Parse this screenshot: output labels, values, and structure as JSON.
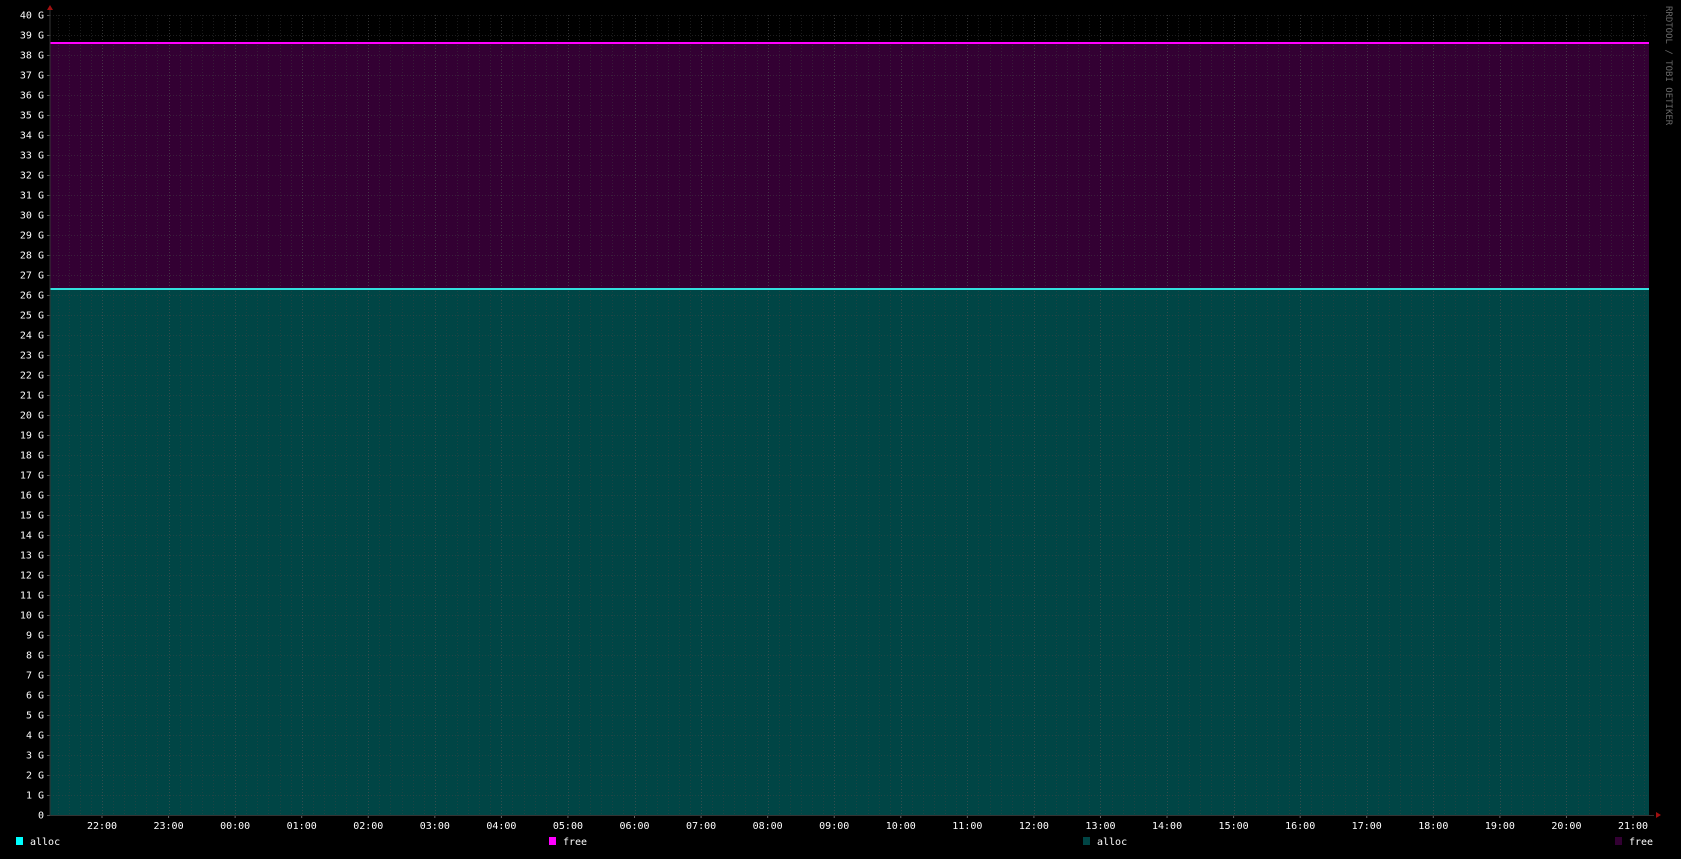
{
  "chart_data": {
    "type": "area",
    "stacked": true,
    "title": "",
    "xlabel": "",
    "ylabel": "",
    "ylim": [
      0,
      40
    ],
    "y_unit_suffix": " G",
    "y_ticks": [
      0,
      1,
      2,
      3,
      4,
      5,
      6,
      7,
      8,
      9,
      10,
      11,
      12,
      13,
      14,
      15,
      16,
      17,
      18,
      19,
      20,
      21,
      22,
      23,
      24,
      25,
      26,
      27,
      28,
      29,
      30,
      31,
      32,
      33,
      34,
      35,
      36,
      37,
      38,
      39,
      40
    ],
    "x_range_hours": [
      "21:13",
      "21:14 (next day)"
    ],
    "x_tick_labels": [
      "22:00",
      "23:00",
      "00:00",
      "01:00",
      "02:00",
      "03:00",
      "04:00",
      "05:00",
      "06:00",
      "07:00",
      "08:00",
      "09:00",
      "10:00",
      "11:00",
      "12:00",
      "13:00",
      "14:00",
      "15:00",
      "16:00",
      "17:00",
      "18:00",
      "19:00",
      "20:00",
      "21:00"
    ],
    "grid": true,
    "series": [
      {
        "name": "alloc",
        "values_constant": 26.3,
        "line_color": "#33dddd",
        "area_color": "#004545"
      },
      {
        "name": "free",
        "values_constant": 12.3,
        "line_color": "#ff00ff",
        "area_color": "#330033"
      }
    ],
    "legend": [
      {
        "label": "alloc",
        "color": "#00ffff"
      },
      {
        "label": "free",
        "color": "#ff00ff"
      },
      {
        "label": "alloc",
        "color": "#004545"
      },
      {
        "label": "free",
        "color": "#330033"
      }
    ],
    "legend_placement": "bottom",
    "watermark": "RRDTOOL / TOBI OETIKER"
  }
}
